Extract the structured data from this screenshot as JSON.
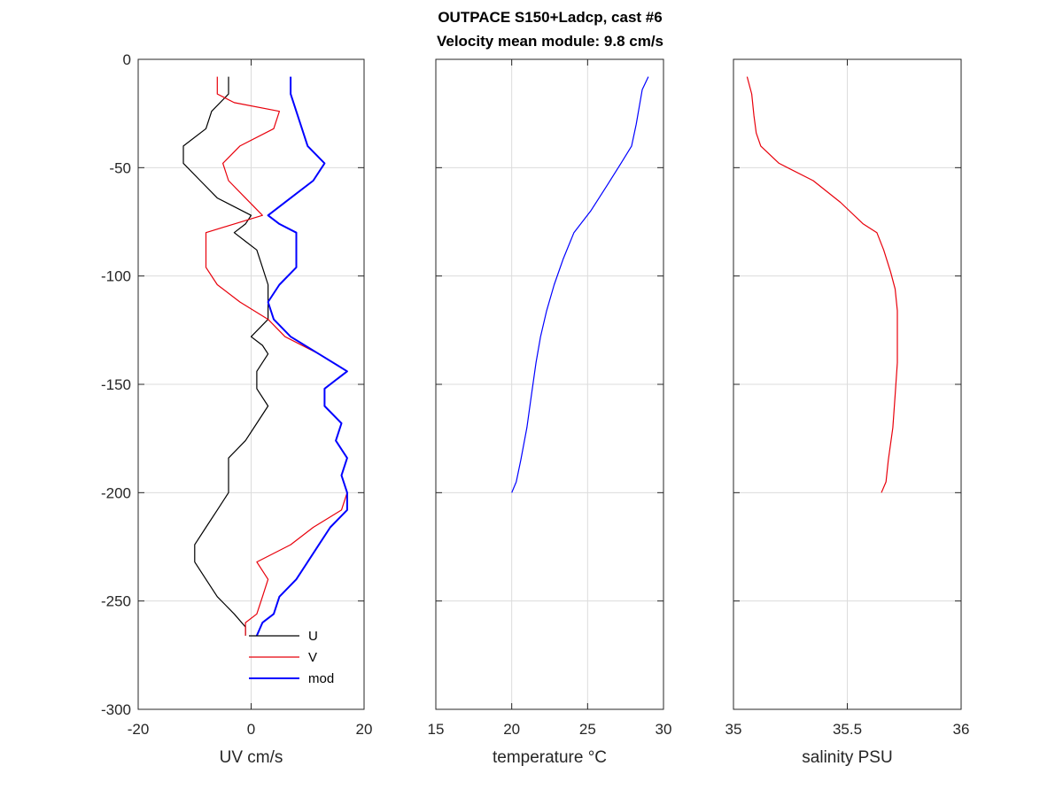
{
  "title": {
    "line1": "OUTPACE S150+Ladcp, cast #6",
    "line2": "Velocity mean module:  9.8 cm/s"
  },
  "chart_data": [
    {
      "type": "line",
      "xlabel": "UV cm/s",
      "ylabel": "",
      "xlim": [
        -20,
        20
      ],
      "ylim": [
        -300,
        0
      ],
      "xticks": [
        "-20",
        "0",
        "20"
      ],
      "yticks": [
        "0",
        "-50",
        "-100",
        "-150",
        "-200",
        "-250",
        "-300"
      ],
      "grid": true,
      "legend": {
        "position": "bottom-center",
        "entries": [
          "U",
          "V",
          "mod"
        ]
      },
      "series": [
        {
          "name": "U",
          "color": "#000000",
          "points": [
            [
              -4,
              -8
            ],
            [
              -4,
              -16
            ],
            [
              -7,
              -24
            ],
            [
              -8,
              -32
            ],
            [
              -12,
              -40
            ],
            [
              -12,
              -48
            ],
            [
              -9,
              -56
            ],
            [
              -6,
              -64
            ],
            [
              0,
              -72
            ],
            [
              -1,
              -76
            ],
            [
              -3,
              -80
            ],
            [
              -1,
              -84
            ],
            [
              1,
              -88
            ],
            [
              2,
              -96
            ],
            [
              3,
              -104
            ],
            [
              3,
              -112
            ],
            [
              3,
              -120
            ],
            [
              0,
              -128
            ],
            [
              2,
              -132
            ],
            [
              3,
              -136
            ],
            [
              1,
              -144
            ],
            [
              1,
              -152
            ],
            [
              3,
              -160
            ],
            [
              1,
              -168
            ],
            [
              -1,
              -176
            ],
            [
              -4,
              -184
            ],
            [
              -4,
              -192
            ],
            [
              -4,
              -200
            ],
            [
              -6,
              -208
            ],
            [
              -8,
              -216
            ],
            [
              -10,
              -224
            ],
            [
              -10,
              -232
            ],
            [
              -8,
              -240
            ],
            [
              -6,
              -248
            ],
            [
              -3,
              -256
            ],
            [
              -1,
              -262
            ],
            [
              -1,
              -266
            ]
          ]
        },
        {
          "name": "V",
          "color": "#e8000b",
          "points": [
            [
              -6,
              -8
            ],
            [
              -6,
              -16
            ],
            [
              -3,
              -20
            ],
            [
              5,
              -24
            ],
            [
              4,
              -32
            ],
            [
              -2,
              -40
            ],
            [
              -5,
              -48
            ],
            [
              -4,
              -56
            ],
            [
              -1,
              -64
            ],
            [
              2,
              -72
            ],
            [
              -3,
              -76
            ],
            [
              -8,
              -80
            ],
            [
              -8,
              -88
            ],
            [
              -8,
              -96
            ],
            [
              -6,
              -104
            ],
            [
              -2,
              -112
            ],
            [
              3,
              -120
            ],
            [
              6,
              -128
            ],
            [
              12,
              -136
            ],
            [
              17,
              -144
            ],
            [
              13,
              -152
            ],
            [
              13,
              -160
            ],
            [
              16,
              -168
            ],
            [
              15,
              -176
            ],
            [
              17,
              -184
            ],
            [
              16,
              -192
            ],
            [
              17,
              -200
            ],
            [
              16,
              -208
            ],
            [
              11,
              -216
            ],
            [
              7,
              -224
            ],
            [
              1,
              -232
            ],
            [
              3,
              -240
            ],
            [
              2,
              -248
            ],
            [
              1,
              -256
            ],
            [
              -1,
              -260
            ],
            [
              -1,
              -266
            ]
          ]
        },
        {
          "name": "mod",
          "color": "#0000ff",
          "points": [
            [
              7,
              -8
            ],
            [
              7,
              -16
            ],
            [
              8,
              -24
            ],
            [
              9,
              -32
            ],
            [
              10,
              -40
            ],
            [
              13,
              -48
            ],
            [
              11,
              -56
            ],
            [
              7,
              -64
            ],
            [
              3,
              -72
            ],
            [
              5,
              -76
            ],
            [
              8,
              -80
            ],
            [
              8,
              -88
            ],
            [
              8,
              -96
            ],
            [
              5,
              -104
            ],
            [
              3,
              -112
            ],
            [
              4,
              -120
            ],
            [
              7,
              -128
            ],
            [
              12,
              -136
            ],
            [
              17,
              -144
            ],
            [
              13,
              -152
            ],
            [
              13,
              -160
            ],
            [
              16,
              -168
            ],
            [
              15,
              -176
            ],
            [
              17,
              -184
            ],
            [
              16,
              -192
            ],
            [
              17,
              -200
            ],
            [
              17,
              -208
            ],
            [
              14,
              -216
            ],
            [
              12,
              -224
            ],
            [
              10,
              -232
            ],
            [
              8,
              -240
            ],
            [
              5,
              -248
            ],
            [
              4,
              -256
            ],
            [
              2,
              -260
            ],
            [
              1,
              -266
            ]
          ]
        }
      ]
    },
    {
      "type": "line",
      "xlabel": "temperature °C",
      "ylabel": "",
      "xlim": [
        15,
        30
      ],
      "ylim": [
        -300,
        0
      ],
      "xticks": [
        "15",
        "20",
        "25",
        "30"
      ],
      "grid": true,
      "series": [
        {
          "name": "",
          "color": "#0000ff",
          "points": [
            [
              29.0,
              -8
            ],
            [
              28.6,
              -14
            ],
            [
              28.4,
              -22
            ],
            [
              28.2,
              -30
            ],
            [
              27.9,
              -40
            ],
            [
              27.2,
              -48
            ],
            [
              26.3,
              -58
            ],
            [
              25.2,
              -70
            ],
            [
              24.1,
              -80
            ],
            [
              23.4,
              -92
            ],
            [
              22.8,
              -104
            ],
            [
              22.3,
              -116
            ],
            [
              21.9,
              -128
            ],
            [
              21.6,
              -140
            ],
            [
              21.3,
              -155
            ],
            [
              21.0,
              -170
            ],
            [
              20.6,
              -185
            ],
            [
              20.3,
              -195
            ],
            [
              20.0,
              -200
            ]
          ]
        }
      ]
    },
    {
      "type": "line",
      "xlabel": "salinity PSU",
      "ylabel": "",
      "xlim": [
        35,
        36
      ],
      "ylim": [
        -300,
        0
      ],
      "xticks": [
        "35",
        "35.5",
        "36"
      ],
      "grid": true,
      "series": [
        {
          "name": "",
          "color": "#e8000b",
          "points": [
            [
              35.06,
              -8
            ],
            [
              35.08,
              -16
            ],
            [
              35.09,
              -26
            ],
            [
              35.1,
              -34
            ],
            [
              35.12,
              -40
            ],
            [
              35.2,
              -48
            ],
            [
              35.35,
              -56
            ],
            [
              35.47,
              -66
            ],
            [
              35.57,
              -76
            ],
            [
              35.63,
              -80
            ],
            [
              35.66,
              -88
            ],
            [
              35.69,
              -98
            ],
            [
              35.71,
              -106
            ],
            [
              35.72,
              -116
            ],
            [
              35.72,
              -126
            ],
            [
              35.72,
              -140
            ],
            [
              35.71,
              -155
            ],
            [
              35.7,
              -170
            ],
            [
              35.68,
              -185
            ],
            [
              35.67,
              -195
            ],
            [
              35.65,
              -200
            ]
          ]
        }
      ]
    }
  ]
}
